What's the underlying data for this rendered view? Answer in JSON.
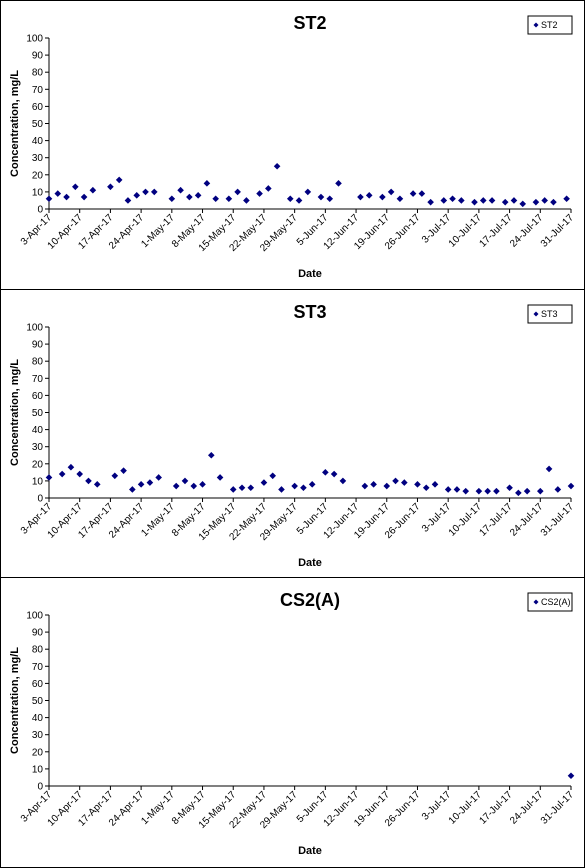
{
  "chart_data": [
    {
      "type": "scatter",
      "title": "ST2",
      "xlabel": "Date",
      "ylabel": "Concentration, mg/L",
      "ylim": [
        0,
        100
      ],
      "yticks": [
        "0",
        "10",
        "20",
        "30",
        "40",
        "50",
        "60",
        "70",
        "80",
        "90",
        "100"
      ],
      "xticks": [
        "3-Apr-17",
        "10-Apr-17",
        "17-Apr-17",
        "24-Apr-17",
        "1-May-17",
        "8-May-17",
        "15-May-17",
        "22-May-17",
        "29-May-17",
        "5-Jun-17",
        "12-Jun-17",
        "19-Jun-17",
        "26-Jun-17",
        "3-Jul-17",
        "10-Jul-17",
        "17-Jul-17",
        "24-Jul-17",
        "31-Jul-17"
      ],
      "legend": "top-right",
      "marker_color": "#000080",
      "series": [
        {
          "name": "ST2",
          "points": [
            [
              "2017-04-03",
              6
            ],
            [
              "2017-04-05",
              9
            ],
            [
              "2017-04-07",
              7
            ],
            [
              "2017-04-09",
              13
            ],
            [
              "2017-04-11",
              7
            ],
            [
              "2017-04-13",
              11
            ],
            [
              "2017-04-17",
              13
            ],
            [
              "2017-04-19",
              17
            ],
            [
              "2017-04-21",
              5
            ],
            [
              "2017-04-23",
              8
            ],
            [
              "2017-04-25",
              10
            ],
            [
              "2017-04-27",
              10
            ],
            [
              "2017-05-01",
              6
            ],
            [
              "2017-05-03",
              11
            ],
            [
              "2017-05-05",
              7
            ],
            [
              "2017-05-07",
              8
            ],
            [
              "2017-05-09",
              15
            ],
            [
              "2017-05-11",
              6
            ],
            [
              "2017-05-14",
              6
            ],
            [
              "2017-05-16",
              10
            ],
            [
              "2017-05-18",
              5
            ],
            [
              "2017-05-21",
              9
            ],
            [
              "2017-05-23",
              12
            ],
            [
              "2017-05-25",
              25
            ],
            [
              "2017-05-28",
              6
            ],
            [
              "2017-05-30",
              5
            ],
            [
              "2017-06-01",
              10
            ],
            [
              "2017-06-04",
              7
            ],
            [
              "2017-06-06",
              6
            ],
            [
              "2017-06-08",
              15
            ],
            [
              "2017-06-13",
              7
            ],
            [
              "2017-06-15",
              8
            ],
            [
              "2017-06-18",
              7
            ],
            [
              "2017-06-20",
              10
            ],
            [
              "2017-06-22",
              6
            ],
            [
              "2017-06-25",
              9
            ],
            [
              "2017-06-27",
              9
            ],
            [
              "2017-06-29",
              4
            ],
            [
              "2017-07-02",
              5
            ],
            [
              "2017-07-04",
              6
            ],
            [
              "2017-07-06",
              5
            ],
            [
              "2017-07-09",
              4
            ],
            [
              "2017-07-11",
              5
            ],
            [
              "2017-07-13",
              5
            ],
            [
              "2017-07-16",
              4
            ],
            [
              "2017-07-18",
              5
            ],
            [
              "2017-07-20",
              3
            ],
            [
              "2017-07-23",
              4
            ],
            [
              "2017-07-25",
              5
            ],
            [
              "2017-07-27",
              4
            ],
            [
              "2017-07-30",
              6
            ]
          ]
        }
      ]
    },
    {
      "type": "scatter",
      "title": "ST3",
      "xlabel": "Date",
      "ylabel": "Concentration, mg/L",
      "ylim": [
        0,
        100
      ],
      "yticks": [
        "0",
        "10",
        "20",
        "30",
        "40",
        "50",
        "60",
        "70",
        "80",
        "90",
        "100"
      ],
      "xticks": [
        "3-Apr-17",
        "10-Apr-17",
        "17-Apr-17",
        "24-Apr-17",
        "1-May-17",
        "8-May-17",
        "15-May-17",
        "22-May-17",
        "29-May-17",
        "5-Jun-17",
        "12-Jun-17",
        "19-Jun-17",
        "26-Jun-17",
        "3-Jul-17",
        "10-Jul-17",
        "17-Jul-17",
        "24-Jul-17",
        "31-Jul-17"
      ],
      "legend": "top-right",
      "marker_color": "#000080",
      "series": [
        {
          "name": "ST3",
          "points": [
            [
              "2017-04-03",
              12
            ],
            [
              "2017-04-06",
              14
            ],
            [
              "2017-04-08",
              18
            ],
            [
              "2017-04-10",
              14
            ],
            [
              "2017-04-12",
              10
            ],
            [
              "2017-04-14",
              8
            ],
            [
              "2017-04-18",
              13
            ],
            [
              "2017-04-20",
              16
            ],
            [
              "2017-04-22",
              5
            ],
            [
              "2017-04-24",
              8
            ],
            [
              "2017-04-26",
              9
            ],
            [
              "2017-04-28",
              12
            ],
            [
              "2017-05-02",
              7
            ],
            [
              "2017-05-04",
              10
            ],
            [
              "2017-05-06",
              7
            ],
            [
              "2017-05-08",
              8
            ],
            [
              "2017-05-10",
              25
            ],
            [
              "2017-05-12",
              12
            ],
            [
              "2017-05-15",
              5
            ],
            [
              "2017-05-17",
              6
            ],
            [
              "2017-05-19",
              6
            ],
            [
              "2017-05-22",
              9
            ],
            [
              "2017-05-24",
              13
            ],
            [
              "2017-05-26",
              5
            ],
            [
              "2017-05-29",
              7
            ],
            [
              "2017-05-31",
              6
            ],
            [
              "2017-06-02",
              8
            ],
            [
              "2017-06-05",
              15
            ],
            [
              "2017-06-07",
              14
            ],
            [
              "2017-06-09",
              10
            ],
            [
              "2017-06-14",
              7
            ],
            [
              "2017-06-16",
              8
            ],
            [
              "2017-06-19",
              7
            ],
            [
              "2017-06-21",
              10
            ],
            [
              "2017-06-23",
              9
            ],
            [
              "2017-06-26",
              8
            ],
            [
              "2017-06-28",
              6
            ],
            [
              "2017-06-30",
              8
            ],
            [
              "2017-07-03",
              5
            ],
            [
              "2017-07-05",
              5
            ],
            [
              "2017-07-07",
              4
            ],
            [
              "2017-07-10",
              4
            ],
            [
              "2017-07-12",
              4
            ],
            [
              "2017-07-14",
              4
            ],
            [
              "2017-07-17",
              6
            ],
            [
              "2017-07-19",
              3
            ],
            [
              "2017-07-21",
              4
            ],
            [
              "2017-07-24",
              4
            ],
            [
              "2017-07-26",
              17
            ],
            [
              "2017-07-28",
              5
            ],
            [
              "2017-07-31",
              7
            ]
          ]
        }
      ]
    },
    {
      "type": "scatter",
      "title": "CS2(A)",
      "xlabel": "Date",
      "ylabel": "Concentration, mg/L",
      "ylim": [
        0,
        100
      ],
      "yticks": [
        "0",
        "10",
        "20",
        "30",
        "40",
        "50",
        "60",
        "70",
        "80",
        "90",
        "100"
      ],
      "xticks": [
        "3-Apr-17",
        "10-Apr-17",
        "17-Apr-17",
        "24-Apr-17",
        "1-May-17",
        "8-May-17",
        "15-May-17",
        "22-May-17",
        "29-May-17",
        "5-Jun-17",
        "12-Jun-17",
        "19-Jun-17",
        "26-Jun-17",
        "3-Jul-17",
        "10-Jul-17",
        "17-Jul-17",
        "24-Jul-17",
        "31-Jul-17"
      ],
      "legend": "top-right",
      "marker_color": "#000080",
      "series": [
        {
          "name": "CS2(A)",
          "points": [
            [
              "2017-07-31",
              6
            ]
          ]
        }
      ]
    }
  ]
}
